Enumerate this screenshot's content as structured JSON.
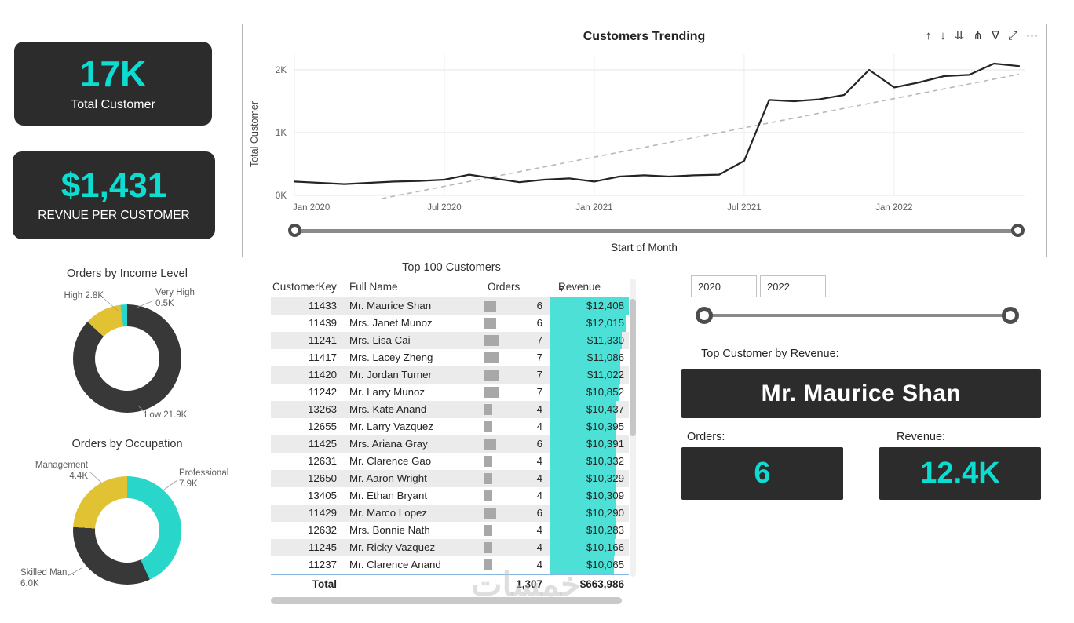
{
  "colors": {
    "accent_teal": "#0ddcd0",
    "cell_teal": "#4ce0d6",
    "card_dark": "#2c2c2c",
    "donut_dark": "#383838",
    "donut_yellow": "#e1c233",
    "donut_teal": "#29d6ca",
    "line_color": "#252423",
    "trend_color": "#b8b8b8",
    "bar_gray": "#a8a8a8"
  },
  "kpi": {
    "total_customers": {
      "value": "17K",
      "label": "Total Customer"
    },
    "revenue_per_customer": {
      "value": "$1,431",
      "label": "REVNUE PER CUSTOMER"
    }
  },
  "chart_data": [
    {
      "name": "customers-trending",
      "type": "line",
      "title": "Customers Trending",
      "xlabel": "Start of Month",
      "ylabel": "Total Customer",
      "unit": "K",
      "x": [
        "Jan 2020",
        "Feb 2020",
        "Mar 2020",
        "Apr 2020",
        "May 2020",
        "Jun 2020",
        "Jul 2020",
        "Aug 2020",
        "Sep 2020",
        "Oct 2020",
        "Nov 2020",
        "Dec 2020",
        "Jan 2021",
        "Feb 2021",
        "Mar 2021",
        "Apr 2021",
        "May 2021",
        "Jun 2021",
        "Jul 2021",
        "Aug 2021",
        "Sep 2021",
        "Oct 2021",
        "Nov 2021",
        "Dec 2021",
        "Jan 2022",
        "Feb 2022",
        "Mar 2022",
        "Apr 2022",
        "May 2022",
        "Jun 2022"
      ],
      "values": [
        0.22,
        0.2,
        0.18,
        0.2,
        0.22,
        0.23,
        0.25,
        0.33,
        0.27,
        0.21,
        0.25,
        0.27,
        0.22,
        0.3,
        0.32,
        0.3,
        0.32,
        0.33,
        0.55,
        1.52,
        1.5,
        1.53,
        1.6,
        2.0,
        1.72,
        1.8,
        1.9,
        1.92,
        2.1,
        2.06
      ],
      "x_ticks": [
        "Jan 2020",
        "Jul 2020",
        "Jan 2021",
        "Jul 2021",
        "Jan 2022"
      ],
      "x_tick_index": [
        0,
        6,
        12,
        18,
        24
      ],
      "y_ticks": [
        "0K",
        "1K",
        "2K"
      ],
      "ylim": [
        0,
        2.25
      ],
      "trendline": {
        "x1": 3.5,
        "y1": -0.05,
        "x2": 29,
        "y2": 1.93,
        "style": "dashed"
      },
      "legend": "off",
      "grid": "on"
    },
    {
      "name": "orders-by-income-level",
      "type": "donut",
      "title": "Orders by Income Level",
      "segments": [
        {
          "label": "Low",
          "value": 21.9,
          "value_label": "Low 21.9K",
          "color_key": "donut_dark"
        },
        {
          "label": "High",
          "value": 2.8,
          "value_label": "High 2.8K",
          "color_key": "donut_yellow"
        },
        {
          "label": "Very High",
          "value": 0.5,
          "value_label": "Very High 0.5K",
          "color_key": "donut_teal"
        }
      ]
    },
    {
      "name": "orders-by-occupation",
      "type": "donut",
      "title": "Orders by Occupation",
      "segments": [
        {
          "label": "Professional",
          "value": 7.9,
          "value_label": "Professional 7.9K",
          "color_key": "donut_teal"
        },
        {
          "label": "Skilled Manual",
          "value": 6.0,
          "value_label": "Skilled Man... 6.0K",
          "color_key": "donut_dark"
        },
        {
          "label": "Management",
          "value": 4.4,
          "value_label": "Management 4.4K",
          "color_key": "donut_yellow"
        }
      ]
    }
  ],
  "table": {
    "title": "Top 100 Customers",
    "columns": [
      "CustomerKey",
      "Full Name",
      "Orders",
      "Revenue"
    ],
    "sort_glyph": "▼",
    "rows": [
      {
        "key": "11433",
        "name": "Mr. Maurice Shan",
        "orders": 6,
        "revenue": "$12,408"
      },
      {
        "key": "11439",
        "name": "Mrs. Janet Munoz",
        "orders": 6,
        "revenue": "$12,015"
      },
      {
        "key": "11241",
        "name": "Mrs. Lisa Cai",
        "orders": 7,
        "revenue": "$11,330"
      },
      {
        "key": "11417",
        "name": "Mrs. Lacey Zheng",
        "orders": 7,
        "revenue": "$11,086"
      },
      {
        "key": "11420",
        "name": "Mr. Jordan Turner",
        "orders": 7,
        "revenue": "$11,022"
      },
      {
        "key": "11242",
        "name": "Mr. Larry Munoz",
        "orders": 7,
        "revenue": "$10,852"
      },
      {
        "key": "13263",
        "name": "Mrs. Kate Anand",
        "orders": 4,
        "revenue": "$10,437"
      },
      {
        "key": "12655",
        "name": "Mr. Larry Vazquez",
        "orders": 4,
        "revenue": "$10,395"
      },
      {
        "key": "11425",
        "name": "Mrs. Ariana Gray",
        "orders": 6,
        "revenue": "$10,391"
      },
      {
        "key": "12631",
        "name": "Mr. Clarence Gao",
        "orders": 4,
        "revenue": "$10,332"
      },
      {
        "key": "12650",
        "name": "Mr. Aaron Wright",
        "orders": 4,
        "revenue": "$10,329"
      },
      {
        "key": "13405",
        "name": "Mr. Ethan Bryant",
        "orders": 4,
        "revenue": "$10,309"
      },
      {
        "key": "11429",
        "name": "Mr. Marco Lopez",
        "orders": 6,
        "revenue": "$10,290"
      },
      {
        "key": "12632",
        "name": "Mrs. Bonnie Nath",
        "orders": 4,
        "revenue": "$10,283"
      },
      {
        "key": "11245",
        "name": "Mr. Ricky Vazquez",
        "orders": 4,
        "revenue": "$10,166"
      },
      {
        "key": "11237",
        "name": "Mr. Clarence Anand",
        "orders": 4,
        "revenue": "$10,065"
      }
    ],
    "total": {
      "label": "Total",
      "orders": "1,307",
      "revenue": "$663,986"
    }
  },
  "filters": {
    "year_from": "2020",
    "year_to": "2022"
  },
  "insights": {
    "top_customer_label": "Top Customer by Revenue:",
    "top_customer_name": "Mr. Maurice Shan",
    "orders_label": "Orders:",
    "orders_value": "6",
    "revenue_label": "Revenue:",
    "revenue_value": "12.4K"
  },
  "toolbar_icons": [
    {
      "name": "drill-up-icon",
      "glyph": "↑"
    },
    {
      "name": "drill-down-icon",
      "glyph": "↓"
    },
    {
      "name": "expand-all-icon",
      "glyph": "⇊"
    },
    {
      "name": "drill-mode-icon",
      "glyph": "⋔"
    },
    {
      "name": "filter-icon",
      "glyph": "∇"
    },
    {
      "name": "focus-mode-icon",
      "glyph": "⤢"
    },
    {
      "name": "more-options-icon",
      "glyph": "⋯"
    }
  ],
  "watermark": "خمسات"
}
